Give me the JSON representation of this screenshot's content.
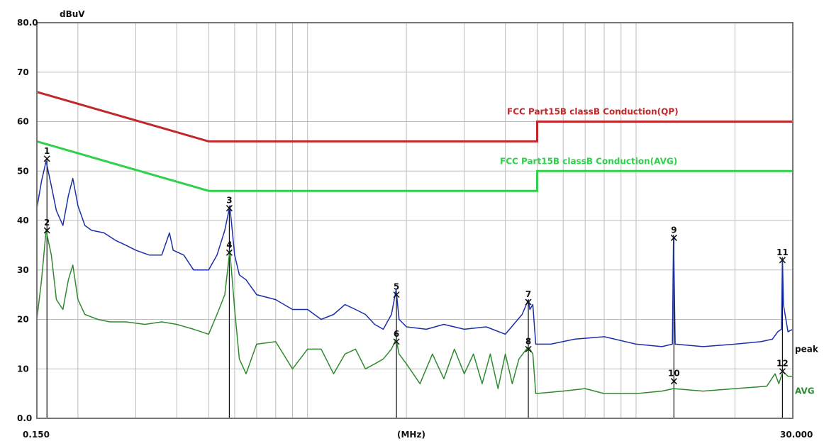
{
  "chart_data": {
    "type": "line",
    "ylabel": "dBuV",
    "xlabel": "(MHz)",
    "x_scale": "log",
    "xlim": [
      0.15,
      30.0
    ],
    "ylim": [
      0,
      80
    ],
    "x_tick_labels": [
      "0.150",
      "30.000"
    ],
    "y_tick_labels": [
      "0.0",
      "10",
      "20",
      "30",
      "40",
      "50",
      "60",
      "70",
      "80.0"
    ],
    "grid": true,
    "colors": {
      "qp_limit": "#c0282b",
      "avg_limit": "#2ed14a",
      "peak": "#1a2fa8",
      "avg": "#2f8a2f",
      "grid": "#bdbdbd",
      "frame": "#777777"
    },
    "limits": [
      {
        "name": "FCC  Part15B classB Conduction(QP)",
        "points": [
          [
            0.15,
            66
          ],
          [
            0.5,
            56
          ],
          [
            5.0,
            56
          ],
          [
            5.0,
            60
          ],
          [
            30.0,
            60
          ]
        ]
      },
      {
        "name": "FCC  Part15B classB Conduction(AVG)",
        "points": [
          [
            0.15,
            56
          ],
          [
            0.5,
            46
          ],
          [
            5.0,
            46
          ],
          [
            5.0,
            50
          ],
          [
            30.0,
            50
          ]
        ]
      }
    ],
    "series": [
      {
        "name": "peak",
        "points": [
          [
            0.15,
            42.5
          ],
          [
            0.155,
            48
          ],
          [
            0.16,
            52
          ],
          [
            0.166,
            47
          ],
          [
            0.172,
            42
          ],
          [
            0.18,
            39
          ],
          [
            0.187,
            45
          ],
          [
            0.193,
            48.5
          ],
          [
            0.2,
            43
          ],
          [
            0.21,
            39
          ],
          [
            0.22,
            38
          ],
          [
            0.24,
            37.5
          ],
          [
            0.26,
            36
          ],
          [
            0.28,
            35
          ],
          [
            0.3,
            34
          ],
          [
            0.33,
            33
          ],
          [
            0.36,
            33
          ],
          [
            0.38,
            37.5
          ],
          [
            0.39,
            34
          ],
          [
            0.42,
            33
          ],
          [
            0.45,
            30
          ],
          [
            0.5,
            30
          ],
          [
            0.53,
            33
          ],
          [
            0.56,
            38
          ],
          [
            0.58,
            43
          ],
          [
            0.6,
            33
          ],
          [
            0.62,
            29
          ],
          [
            0.65,
            28
          ],
          [
            0.7,
            25
          ],
          [
            0.8,
            24
          ],
          [
            0.9,
            22
          ],
          [
            1.0,
            22
          ],
          [
            1.1,
            20
          ],
          [
            1.2,
            21
          ],
          [
            1.3,
            23
          ],
          [
            1.4,
            22
          ],
          [
            1.5,
            21
          ],
          [
            1.6,
            19
          ],
          [
            1.7,
            18
          ],
          [
            1.8,
            21
          ],
          [
            1.86,
            26
          ],
          [
            1.9,
            20
          ],
          [
            2.0,
            18.5
          ],
          [
            2.3,
            18
          ],
          [
            2.6,
            19
          ],
          [
            3.0,
            18
          ],
          [
            3.5,
            18.5
          ],
          [
            4.0,
            17
          ],
          [
            4.5,
            21
          ],
          [
            4.7,
            24
          ],
          [
            4.75,
            22
          ],
          [
            4.85,
            23
          ],
          [
            4.95,
            15
          ],
          [
            5.5,
            15
          ],
          [
            6.5,
            16
          ],
          [
            8.0,
            16.5
          ],
          [
            10.0,
            15
          ],
          [
            12.0,
            14.5
          ],
          [
            12.9,
            15
          ],
          [
            13.0,
            37
          ],
          [
            13.15,
            15
          ],
          [
            16.0,
            14.5
          ],
          [
            20.0,
            15
          ],
          [
            24.0,
            15.5
          ],
          [
            26.0,
            16
          ],
          [
            27.0,
            17.5
          ],
          [
            27.7,
            18
          ],
          [
            27.9,
            32.5
          ],
          [
            28.1,
            23
          ],
          [
            29.0,
            17.5
          ],
          [
            30.0,
            18
          ]
        ]
      },
      {
        "name": "AVG",
        "points": [
          [
            0.15,
            20
          ],
          [
            0.155,
            28
          ],
          [
            0.16,
            38
          ],
          [
            0.166,
            33
          ],
          [
            0.172,
            24
          ],
          [
            0.18,
            22
          ],
          [
            0.187,
            28
          ],
          [
            0.193,
            31
          ],
          [
            0.2,
            24
          ],
          [
            0.21,
            21
          ],
          [
            0.23,
            20
          ],
          [
            0.25,
            19.5
          ],
          [
            0.28,
            19.5
          ],
          [
            0.32,
            19
          ],
          [
            0.36,
            19.5
          ],
          [
            0.4,
            19
          ],
          [
            0.45,
            18
          ],
          [
            0.5,
            17
          ],
          [
            0.53,
            21
          ],
          [
            0.56,
            25
          ],
          [
            0.58,
            34
          ],
          [
            0.6,
            22
          ],
          [
            0.62,
            12
          ],
          [
            0.65,
            9
          ],
          [
            0.7,
            15
          ],
          [
            0.8,
            15.5
          ],
          [
            0.9,
            10
          ],
          [
            1.0,
            14
          ],
          [
            1.1,
            14
          ],
          [
            1.2,
            9
          ],
          [
            1.3,
            13
          ],
          [
            1.4,
            14
          ],
          [
            1.5,
            10
          ],
          [
            1.6,
            11
          ],
          [
            1.7,
            12
          ],
          [
            1.8,
            14
          ],
          [
            1.86,
            16
          ],
          [
            1.9,
            13
          ],
          [
            2.0,
            11
          ],
          [
            2.2,
            7
          ],
          [
            2.4,
            13
          ],
          [
            2.6,
            8
          ],
          [
            2.8,
            14
          ],
          [
            3.0,
            9
          ],
          [
            3.2,
            13
          ],
          [
            3.4,
            7
          ],
          [
            3.6,
            13
          ],
          [
            3.8,
            6
          ],
          [
            4.0,
            13
          ],
          [
            4.2,
            7
          ],
          [
            4.4,
            12
          ],
          [
            4.7,
            14.5
          ],
          [
            4.85,
            13
          ],
          [
            4.95,
            5
          ],
          [
            6.0,
            5.5
          ],
          [
            7.0,
            6
          ],
          [
            8.0,
            5
          ],
          [
            10.0,
            5
          ],
          [
            12.0,
            5.5
          ],
          [
            13.0,
            6
          ],
          [
            16.0,
            5.5
          ],
          [
            20.0,
            6
          ],
          [
            25.0,
            6.5
          ],
          [
            26.5,
            9
          ],
          [
            27.2,
            7
          ],
          [
            28.0,
            9.5
          ],
          [
            29.0,
            8.5
          ],
          [
            30.0,
            8.5
          ]
        ]
      }
    ],
    "markers": [
      {
        "label": "1",
        "x": 0.161,
        "y": 52.5
      },
      {
        "label": "2",
        "x": 0.161,
        "y": 38.0
      },
      {
        "label": "3",
        "x": 0.578,
        "y": 42.5
      },
      {
        "label": "4",
        "x": 0.578,
        "y": 33.5
      },
      {
        "label": "5",
        "x": 1.865,
        "y": 25.0
      },
      {
        "label": "6",
        "x": 1.865,
        "y": 15.5
      },
      {
        "label": "7",
        "x": 4.7,
        "y": 23.5
      },
      {
        "label": "8",
        "x": 4.7,
        "y": 14.0
      },
      {
        "label": "9",
        "x": 13.04,
        "y": 36.5
      },
      {
        "label": "10",
        "x": 13.04,
        "y": 7.5
      },
      {
        "label": "11",
        "x": 27.9,
        "y": 32.0
      },
      {
        "label": "12",
        "x": 27.9,
        "y": 9.5
      }
    ]
  }
}
